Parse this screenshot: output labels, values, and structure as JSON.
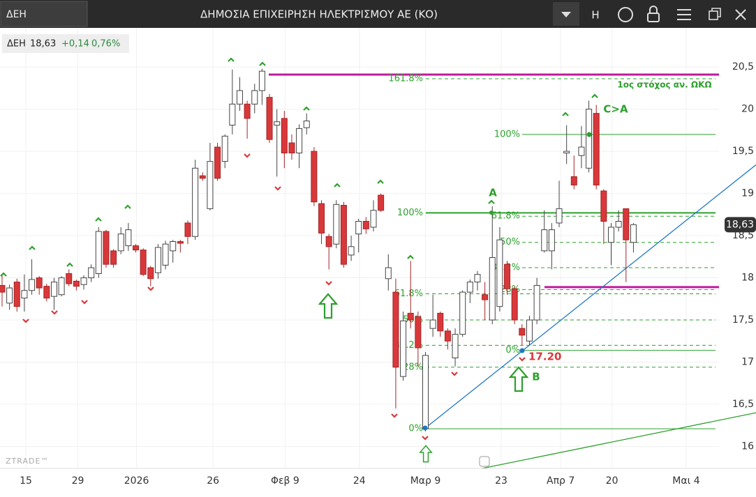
{
  "header": {
    "symbol": "ΔΕΗ",
    "title": "ΔΗΜΟΣΙΑ ΕΠΙΧΕΙΡΗΣΗ ΗΛΕΚΤΡΙΣΜΟΥ ΑΕ (ΚΟ)",
    "h": "H"
  },
  "quote": {
    "symbol": "ΔΕΗ",
    "price": "18,63",
    "change": "+0,14",
    "pct": "0,76%"
  },
  "watermark": "ZTRADE™",
  "chart_data": {
    "type": "candlestick",
    "open": [
      17.91,
      17.7,
      17.95,
      17.76,
      17.85,
      18.0,
      17.9,
      17.78,
      17.8,
      18.05,
      17.96,
      17.92,
      18.0,
      18.05,
      18.55,
      18.32,
      18.32,
      18.38,
      18.38,
      18.33,
      18.12,
      18.06,
      18.15,
      18.32,
      18.43,
      18.65,
      18.49,
      19.21,
      18.82,
      19.55,
      19.38,
      19.81,
      20.06,
      20.06,
      20.06,
      20.22,
      20.14,
      19.81,
      19.89,
      19.6,
      19.48,
      19.78,
      19.5,
      18.88,
      18.49,
      18.4,
      18.86,
      18.27,
      18.52,
      18.67,
      18.6,
      18.98,
      17.99,
      17.83,
      16.83,
      17.58,
      17.54,
      16.21,
      17.4,
      17.58,
      17.37,
      17.05,
      17.33,
      17.83,
      17.95,
      17.8,
      17.5,
      17.66,
      18.16,
      17.87,
      17.4,
      17.25,
      17.5,
      18.32,
      18.32,
      18.65,
      19.48,
      19.2,
      19.45,
      19.3,
      19.95,
      19.03,
      18.42,
      18.6,
      18.82,
      18.42
    ],
    "high": [
      18.04,
      17.92,
      17.99,
      18.04,
      18.22,
      18.02,
      17.93,
      18.0,
      18.02,
      18.1,
      17.98,
      18.03,
      18.16,
      18.6,
      18.57,
      18.34,
      18.6,
      18.65,
      18.4,
      18.35,
      18.14,
      18.4,
      18.44,
      18.45,
      18.45,
      18.68,
      19.4,
      19.25,
      19.6,
      19.6,
      19.7,
      20.47,
      20.38,
      20.1,
      20.3,
      20.48,
      20.18,
      20.0,
      19.98,
      19.7,
      19.82,
      19.95,
      19.55,
      18.92,
      18.52,
      18.92,
      18.9,
      18.5,
      18.7,
      18.72,
      18.92,
      19.0,
      18.28,
      17.99,
      17.6,
      18.2,
      17.6,
      17.12,
      17.8,
      17.6,
      17.4,
      17.4,
      17.85,
      17.98,
      18.08,
      17.95,
      18.85,
      18.6,
      18.2,
      17.9,
      17.45,
      17.55,
      18.0,
      18.8,
      18.65,
      19.15,
      19.81,
      19.45,
      19.8,
      20.1,
      20.05,
      19.05,
      18.65,
      18.8,
      18.82,
      18.65
    ],
    "low": [
      17.66,
      17.62,
      17.6,
      17.6,
      17.8,
      17.8,
      17.72,
      17.62,
      17.78,
      17.9,
      17.85,
      17.86,
      17.95,
      18.0,
      18.12,
      18.12,
      18.28,
      18.32,
      18.3,
      18.02,
      17.9,
      17.99,
      18.1,
      18.18,
      18.3,
      18.4,
      18.45,
      19.15,
      18.8,
      19.15,
      19.3,
      19.7,
      19.98,
      19.65,
      19.95,
      20.05,
      19.6,
      19.2,
      19.3,
      19.4,
      19.3,
      19.7,
      18.85,
      18.4,
      18.1,
      18.35,
      18.12,
      18.2,
      18.3,
      18.52,
      18.55,
      18.78,
      17.85,
      16.45,
      16.78,
      17.4,
      16.95,
      16.18,
      17.3,
      17.3,
      17.15,
      16.95,
      17.3,
      17.7,
      17.85,
      17.5,
      17.45,
      17.6,
      17.8,
      17.45,
      17.2,
      17.2,
      17.45,
      18.3,
      18.1,
      18.6,
      19.35,
      19.05,
      19.3,
      19.25,
      19.05,
      18.4,
      18.15,
      18.55,
      17.95,
      18.3
    ],
    "close": [
      17.83,
      17.88,
      17.66,
      17.85,
      17.98,
      17.88,
      17.76,
      17.95,
      18.0,
      17.93,
      17.9,
      18.0,
      18.12,
      18.55,
      18.16,
      18.16,
      18.52,
      18.57,
      18.33,
      18.04,
      17.99,
      18.36,
      18.4,
      18.43,
      18.41,
      18.49,
      19.3,
      19.18,
      19.38,
      19.18,
      19.68,
      20.06,
      20.22,
      19.89,
      20.22,
      20.45,
      19.64,
      19.85,
      19.48,
      19.48,
      19.77,
      19.86,
      18.9,
      18.53,
      18.37,
      18.87,
      18.16,
      18.37,
      18.67,
      18.58,
      18.8,
      18.8,
      18.12,
      16.94,
      17.49,
      17.5,
      17.17,
      17.08,
      17.5,
      17.37,
      17.25,
      17.33,
      17.83,
      17.95,
      18.04,
      17.74,
      18.24,
      18.45,
      17.87,
      17.5,
      17.32,
      17.5,
      17.91,
      18.57,
      18.57,
      18.82,
      19.5,
      19.1,
      19.55,
      20.0,
      19.1,
      18.67,
      18.6,
      18.67,
      18.45,
      18.63
    ],
    "up_color": "#ffffff",
    "down_color": "#d9383a",
    "xlim": [
      -0.28,
      101.5
    ],
    "xticks": [
      {
        "value": 3.2,
        "label": "15"
      },
      {
        "value": 10.2,
        "label": "29"
      },
      {
        "value": 18.1,
        "label": "2026"
      },
      {
        "value": 28.4,
        "label": "26"
      },
      {
        "value": 38.1,
        "label": "Φεβ 9"
      },
      {
        "value": 48.1,
        "label": "24"
      },
      {
        "value": 57,
        "label": "Μαρ 9"
      },
      {
        "value": 67.2,
        "label": "23"
      },
      {
        "value": 75.2,
        "label": "Απρ 7"
      },
      {
        "value": 82.1,
        "label": "20"
      },
      {
        "value": 92.1,
        "label": "Μαι 4"
      }
    ],
    "ylim": [
      15.74,
      20.98
    ],
    "yticks": [
      16,
      {
        "value": 16.5,
        "label": "16,5"
      },
      17,
      {
        "value": 17.5,
        "label": "17,5"
      },
      18,
      {
        "value": 18.5,
        "label": "18,5"
      },
      19,
      {
        "value": 19.5,
        "label": "19,5"
      },
      20,
      {
        "value": 20.5,
        "label": "20,5"
      }
    ],
    "grid": true,
    "last_price": {
      "value": 18.63,
      "label": "18,63"
    },
    "horizontal_lines": [
      {
        "value": 20.41,
        "color": "#c0189c"
      },
      {
        "value": 17.89,
        "color": "#c0189c"
      }
    ],
    "fib_sets": [
      {
        "color": "#2ca02c",
        "levels": [
          {
            "label": "161.8%",
            "value": 20.36
          },
          {
            "label": "100%",
            "value": 18.77
          },
          {
            "label": "61.8%",
            "value": 17.81
          },
          {
            "label": "50%",
            "value": 17.5
          },
          {
            "label": "38.2%",
            "value": 17.2
          },
          {
            "label": "28%",
            "value": 16.94
          },
          {
            "label": "0%",
            "value": 16.21
          }
        ]
      },
      {
        "color": "#2ca02c",
        "levels": [
          {
            "label": "100%",
            "value": 19.7
          },
          {
            "label": "61.8%",
            "value": 18.73
          },
          {
            "label": "50%",
            "value": 18.42
          },
          {
            "label": "38.2%",
            "value": 18.12
          },
          {
            "label": "28%",
            "value": 17.86
          },
          {
            "label": "0%",
            "value": 17.14
          }
        ]
      }
    ],
    "trendlines": [
      {
        "from": [
          57,
          16.22
        ],
        "to": [
          101.5,
          19.34
        ],
        "color": "#1f77c4"
      },
      {
        "from": [
          64.6,
          15.74
        ],
        "to": [
          101.5,
          16.4
        ],
        "color": "#2ca02c"
      }
    ],
    "annotations": [
      "A",
      "B",
      "C>A",
      "17.20",
      "1ος στόχος αν. ΩΚΩ"
    ]
  }
}
